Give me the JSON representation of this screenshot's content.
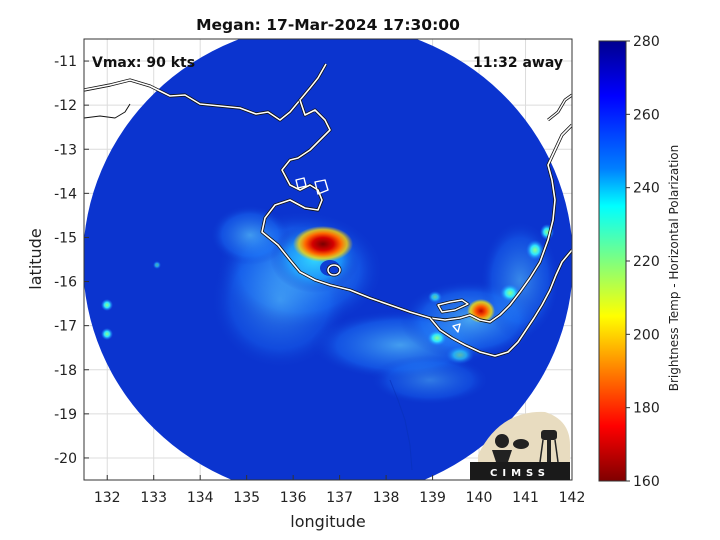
{
  "title": "Megan: 17-Mar-2024 17:30:00",
  "overlay": {
    "vmax": "Vmax: 90 kts",
    "time_away": "11:32 away"
  },
  "axes": {
    "xlabel": "longitude",
    "ylabel": "latitude",
    "xlim": [
      131.5,
      142
    ],
    "ylim": [
      -20.5,
      -10.5
    ],
    "xticks": [
      "132",
      "133",
      "134",
      "135",
      "136",
      "137",
      "138",
      "139",
      "140",
      "141",
      "142"
    ],
    "yticks": [
      "-11",
      "-12",
      "-13",
      "-14",
      "-15",
      "-16",
      "-17",
      "-18",
      "-19",
      "-20"
    ],
    "grid": true
  },
  "colorbar": {
    "label": "Brightness Temp - Horizontal Polarization",
    "ticks": [
      "280",
      "260",
      "240",
      "220",
      "200",
      "180",
      "160"
    ],
    "range": [
      160,
      280
    ],
    "colormap": "jet (reversed: low=dark red, high=dark blue)"
  },
  "storm": {
    "name": "Megan",
    "center_lon": 136.6,
    "center_lat": -15.1
  },
  "logo": {
    "text": "CIMSS"
  },
  "colors": {
    "background_cold": "#0a2fc8",
    "coastline": "#ffffff",
    "grid": "#d9d9d9"
  }
}
